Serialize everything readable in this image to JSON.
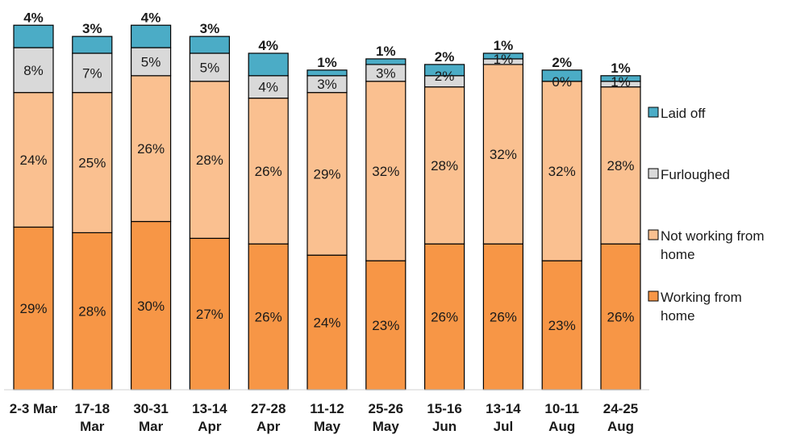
{
  "chart_data": {
    "type": "bar",
    "stacked": true,
    "categories": [
      [
        "2-3 Mar"
      ],
      [
        "17-18",
        "Mar"
      ],
      [
        "30-31",
        "Mar"
      ],
      [
        "13-14",
        "Apr"
      ],
      [
        "27-28",
        "Apr"
      ],
      [
        "11-12",
        "May"
      ],
      [
        "25-26",
        "May"
      ],
      [
        "15-16",
        "Jun"
      ],
      [
        "13-14",
        "Jul"
      ],
      [
        "10-11",
        "Aug"
      ],
      [
        "24-25",
        "Aug"
      ]
    ],
    "series": [
      {
        "name": "Working from home",
        "color": "#F79646",
        "values": [
          29,
          28,
          30,
          27,
          26,
          24,
          23,
          26,
          26,
          23,
          26
        ]
      },
      {
        "name": "Not working from home",
        "color": "#FAC090",
        "values": [
          24,
          25,
          26,
          28,
          26,
          29,
          32,
          28,
          32,
          32,
          28
        ]
      },
      {
        "name": "Furloughed",
        "color": "#D9D9D9",
        "values": [
          8,
          7,
          5,
          5,
          4,
          3,
          3,
          2,
          1,
          0,
          1
        ]
      },
      {
        "name": "Laid off",
        "color": "#4BACC6",
        "values": [
          4,
          3,
          4,
          3,
          4,
          1,
          1,
          2,
          1,
          2,
          1
        ]
      }
    ],
    "value_labels": {
      "Working from home": [
        "29%",
        "28%",
        "30%",
        "27%",
        "26%",
        "24%",
        "23%",
        "26%",
        "26%",
        "23%",
        "26%"
      ],
      "Not working from home": [
        "24%",
        "25%",
        "26%",
        "28%",
        "26%",
        "29%",
        "32%",
        "28%",
        "32%",
        "32%",
        "28%"
      ],
      "Furloughed": [
        "8%",
        "7%",
        "5%",
        "5%",
        "4%",
        "3%",
        "3%",
        "2%",
        "1%",
        "0%",
        "1%"
      ],
      "Laid off": [
        "4%",
        "3%",
        "4%",
        "3%",
        "4%",
        "1%",
        "1%",
        "2%",
        "1%",
        "2%",
        "1%"
      ]
    },
    "legend": {
      "position": "right",
      "entries": [
        {
          "series": "Laid off",
          "lines": [
            "Laid off"
          ]
        },
        {
          "series": "Furloughed",
          "lines": [
            "Furloughed"
          ]
        },
        {
          "series": "Not working from home",
          "lines": [
            "Not working from",
            "home"
          ]
        },
        {
          "series": "Working from home",
          "lines": [
            "Working from",
            "home"
          ]
        }
      ]
    },
    "title": "",
    "xlabel": "",
    "ylabel": "",
    "ylim": [
      0,
      65
    ],
    "grid": false
  }
}
